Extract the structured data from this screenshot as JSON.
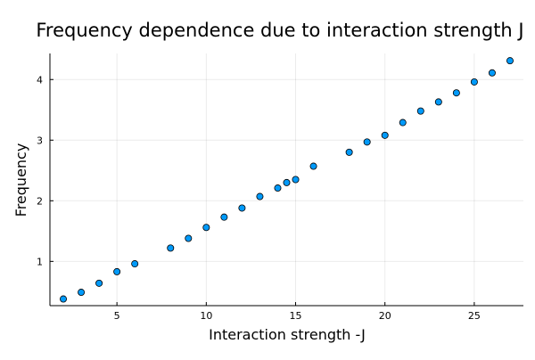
{
  "chart_data": {
    "type": "scatter",
    "title": "Frequency dependence due to interaction strength J",
    "xlabel": "Interaction strength -J",
    "ylabel": "Frequency",
    "xlim": [
      1.25,
      27.75
    ],
    "ylim": [
      0.27,
      4.43
    ],
    "xticks": [
      5,
      10,
      15,
      20,
      25
    ],
    "yticks": [
      1,
      2,
      3,
      4
    ],
    "grid": true,
    "legend": "none",
    "marker_color": "#009AFA",
    "marker_edge_color": "#000000",
    "series": [
      {
        "x": [
          2,
          3,
          4,
          5,
          6,
          8,
          9,
          10,
          11,
          12,
          13,
          14,
          14.5,
          15,
          16,
          18,
          19,
          20,
          21,
          22,
          23,
          24,
          25,
          26,
          27
        ],
        "y": [
          0.38,
          0.49,
          0.64,
          0.83,
          0.96,
          1.22,
          1.38,
          1.56,
          1.73,
          1.88,
          2.07,
          2.21,
          2.3,
          2.35,
          2.57,
          2.8,
          2.97,
          3.08,
          3.29,
          3.48,
          3.63,
          3.78,
          3.96,
          4.11,
          4.31
        ]
      }
    ]
  }
}
